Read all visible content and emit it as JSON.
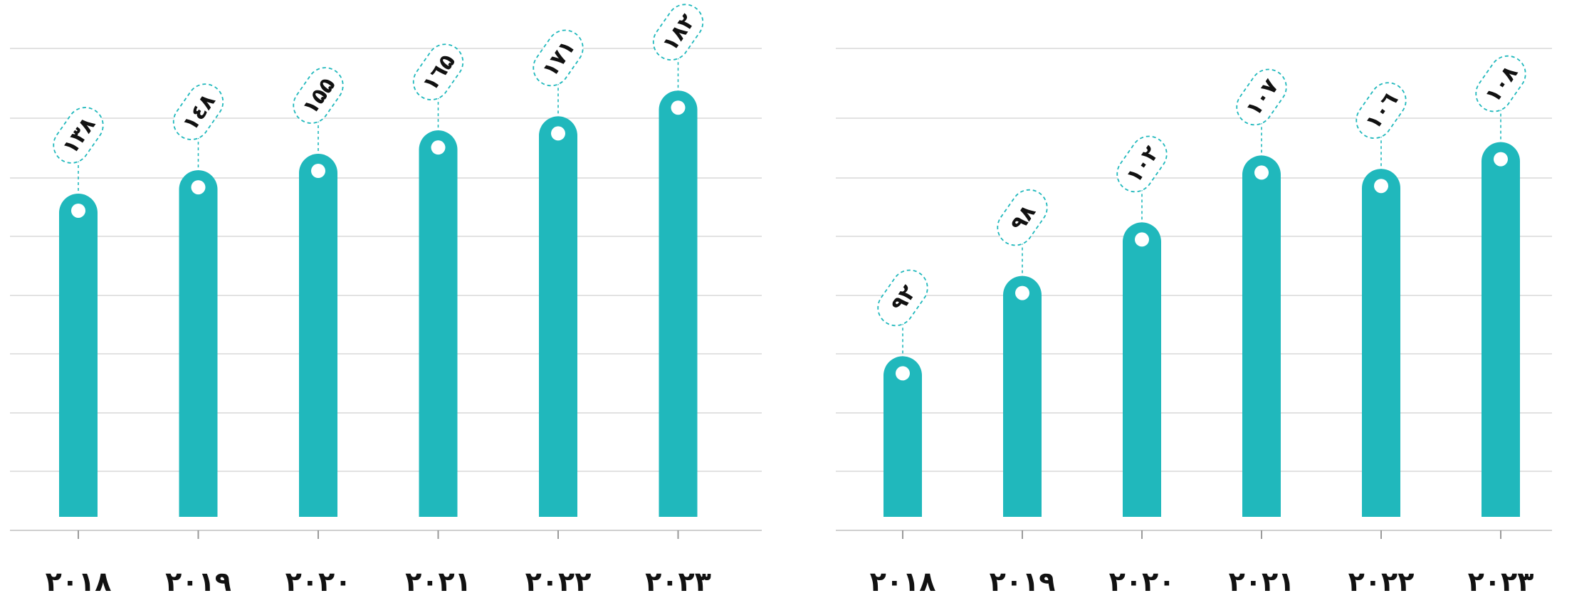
{
  "chart_data": [
    {
      "type": "bar",
      "categories": [
        "۲۰۱۸",
        "۲۰۱۹",
        "۲۰۲۰",
        "۲۰۲۱",
        "۲۰۲۲",
        "۲۰۲۳"
      ],
      "values": [
        138,
        148,
        155,
        165,
        171,
        182
      ],
      "value_labels": [
        "۱۳۸",
        "۱٤۸",
        "۱۵۵",
        "۱٦۵",
        "۱۷۱",
        "۱۸۲"
      ],
      "ylim": [
        0,
        200
      ],
      "grid": true,
      "color": "#20b8bc"
    },
    {
      "type": "bar",
      "categories": [
        "۲۰۱۸",
        "۲۰۱۹",
        "۲۰۲۰",
        "۲۰۲۱",
        "۲۰۲۲",
        "۲۰۲۳"
      ],
      "values": [
        92,
        98,
        102,
        107,
        106,
        108
      ],
      "value_labels": [
        "۹۲",
        "۹۸",
        "۱۰۲",
        "۱۰۷",
        "۱۰٦",
        "۱۰۸"
      ],
      "ylim": [
        80,
        115
      ],
      "grid": true,
      "color": "#20b8bc"
    }
  ]
}
